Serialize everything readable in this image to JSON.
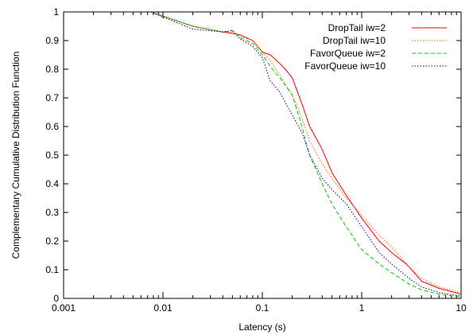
{
  "chart_data": {
    "type": "line",
    "title": "",
    "xlabel": "Latency (s)",
    "ylabel": "Complementary Cumulative Distribution Function",
    "x_scale": "log",
    "xlim": [
      0.001,
      10
    ],
    "ylim": [
      0,
      1
    ],
    "x_ticks": [
      {
        "value": 0.001,
        "label": "0.001"
      },
      {
        "value": 0.01,
        "label": "0.01"
      },
      {
        "value": 0.1,
        "label": "0.1"
      },
      {
        "value": 1,
        "label": "1"
      },
      {
        "value": 10,
        "label": "10"
      }
    ],
    "y_ticks": [
      {
        "value": 0,
        "label": "0"
      },
      {
        "value": 0.1,
        "label": "0.1"
      },
      {
        "value": 0.2,
        "label": "0.2"
      },
      {
        "value": 0.3,
        "label": "0.3"
      },
      {
        "value": 0.4,
        "label": "0.4"
      },
      {
        "value": 0.5,
        "label": "0.5"
      },
      {
        "value": 0.6,
        "label": "0.6"
      },
      {
        "value": 0.7,
        "label": "0.7"
      },
      {
        "value": 0.8,
        "label": "0.8"
      },
      {
        "value": 0.9,
        "label": "0.9"
      },
      {
        "value": 1,
        "label": "1"
      }
    ],
    "grid": false,
    "legend_position": "top-right",
    "series": [
      {
        "name": "DropTail iw=2",
        "color": "#ff0000",
        "dash": "solid",
        "x": [
          0.0075,
          0.02,
          0.04,
          0.05,
          0.06,
          0.08,
          0.1,
          0.12,
          0.13,
          0.15,
          0.17,
          0.2,
          0.25,
          0.3,
          0.4,
          0.5,
          0.7,
          1.0,
          1.5,
          2.0,
          2.8,
          3.0,
          4.0,
          6.0,
          10.0
        ],
        "y": [
          1.0,
          0.95,
          0.93,
          0.925,
          0.92,
          0.9,
          0.86,
          0.85,
          0.84,
          0.82,
          0.8,
          0.77,
          0.68,
          0.6,
          0.52,
          0.44,
          0.36,
          0.28,
          0.2,
          0.16,
          0.12,
          0.11,
          0.06,
          0.035,
          0.015
        ]
      },
      {
        "name": "DropTail iw=10",
        "color": "#ff6600",
        "dash": "dotted",
        "x": [
          0.0075,
          0.02,
          0.04,
          0.05,
          0.06,
          0.08,
          0.1,
          0.12,
          0.15,
          0.2,
          0.25,
          0.3,
          0.4,
          0.5,
          0.7,
          1.0,
          1.5,
          2.0,
          3.0,
          4.0,
          6.0,
          10.0
        ],
        "y": [
          1.0,
          0.95,
          0.93,
          0.93,
          0.915,
          0.9,
          0.86,
          0.83,
          0.78,
          0.71,
          0.63,
          0.55,
          0.47,
          0.42,
          0.35,
          0.29,
          0.22,
          0.18,
          0.11,
          0.07,
          0.04,
          0.02
        ]
      },
      {
        "name": "FavorQueue iw=2",
        "color": "#00cc00",
        "dash": "dashed",
        "x": [
          0.0075,
          0.02,
          0.04,
          0.05,
          0.06,
          0.08,
          0.1,
          0.12,
          0.15,
          0.2,
          0.25,
          0.3,
          0.4,
          0.5,
          0.7,
          1.0,
          1.5,
          2.0,
          3.0,
          4.0,
          6.0,
          10.0
        ],
        "y": [
          1.0,
          0.95,
          0.93,
          0.935,
          0.91,
          0.89,
          0.85,
          0.81,
          0.77,
          0.71,
          0.6,
          0.5,
          0.4,
          0.33,
          0.25,
          0.17,
          0.12,
          0.09,
          0.05,
          0.03,
          0.015,
          0.005
        ]
      },
      {
        "name": "FavorQueue iw=10",
        "color": "#0000aa",
        "dash": "dotted",
        "x": [
          0.0075,
          0.02,
          0.04,
          0.05,
          0.06,
          0.08,
          0.1,
          0.12,
          0.15,
          0.2,
          0.25,
          0.3,
          0.4,
          0.5,
          0.7,
          1.0,
          1.5,
          2.0,
          3.0,
          4.0,
          6.0,
          10.0
        ],
        "y": [
          1.0,
          0.94,
          0.93,
          0.935,
          0.905,
          0.88,
          0.84,
          0.76,
          0.72,
          0.64,
          0.58,
          0.5,
          0.42,
          0.38,
          0.33,
          0.25,
          0.16,
          0.12,
          0.07,
          0.04,
          0.02,
          0.008
        ]
      }
    ]
  }
}
